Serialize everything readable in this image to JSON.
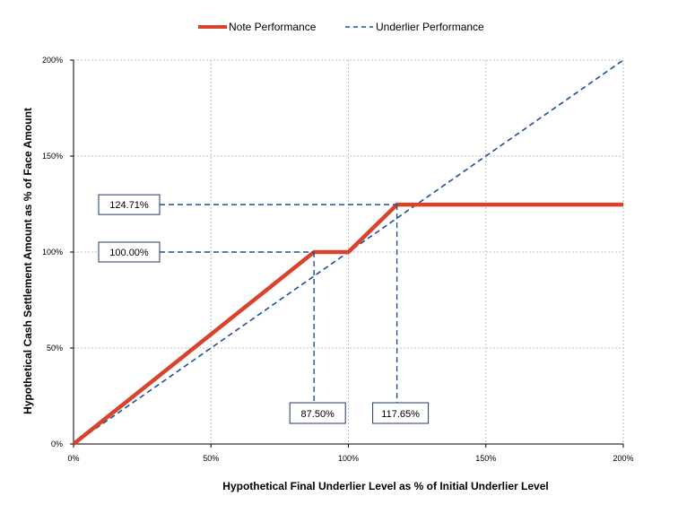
{
  "chart_data": {
    "type": "line",
    "xlabel": "Hypothetical Final Underlier Level as % of Initial Underlier Level",
    "ylabel": "Hypothetical Cash Settlement Amount as % of Face Amount",
    "xlim": [
      0,
      200
    ],
    "ylim": [
      0,
      200
    ],
    "x_ticks": [
      "0%",
      "50%",
      "100%",
      "150%",
      "200%"
    ],
    "y_ticks": [
      "0%",
      "50%",
      "100%",
      "150%",
      "200%"
    ],
    "grid": true,
    "legend_position": "top",
    "series": [
      {
        "name": "Note Performance",
        "color": "#d9432b",
        "style": "solid-thick",
        "points": [
          [
            0,
            0
          ],
          [
            87.5,
            100
          ],
          [
            100,
            100
          ],
          [
            117.65,
            124.71
          ],
          [
            200,
            124.71
          ]
        ]
      },
      {
        "name": "Underlier Performance",
        "color": "#1f4e9c",
        "style": "dashed",
        "points": [
          [
            0,
            0
          ],
          [
            200,
            200
          ]
        ]
      }
    ],
    "annotations": [
      {
        "label": "124.71%",
        "axis": "y",
        "value": 124.71,
        "to_x": 117.65
      },
      {
        "label": "100.00%",
        "axis": "y",
        "value": 100,
        "to_x": 87.5
      },
      {
        "label": "87.50%",
        "axis": "x",
        "value": 87.5,
        "to_y": 100
      },
      {
        "label": "117.65%",
        "axis": "x",
        "value": 117.65,
        "to_y": 124.71
      }
    ]
  }
}
